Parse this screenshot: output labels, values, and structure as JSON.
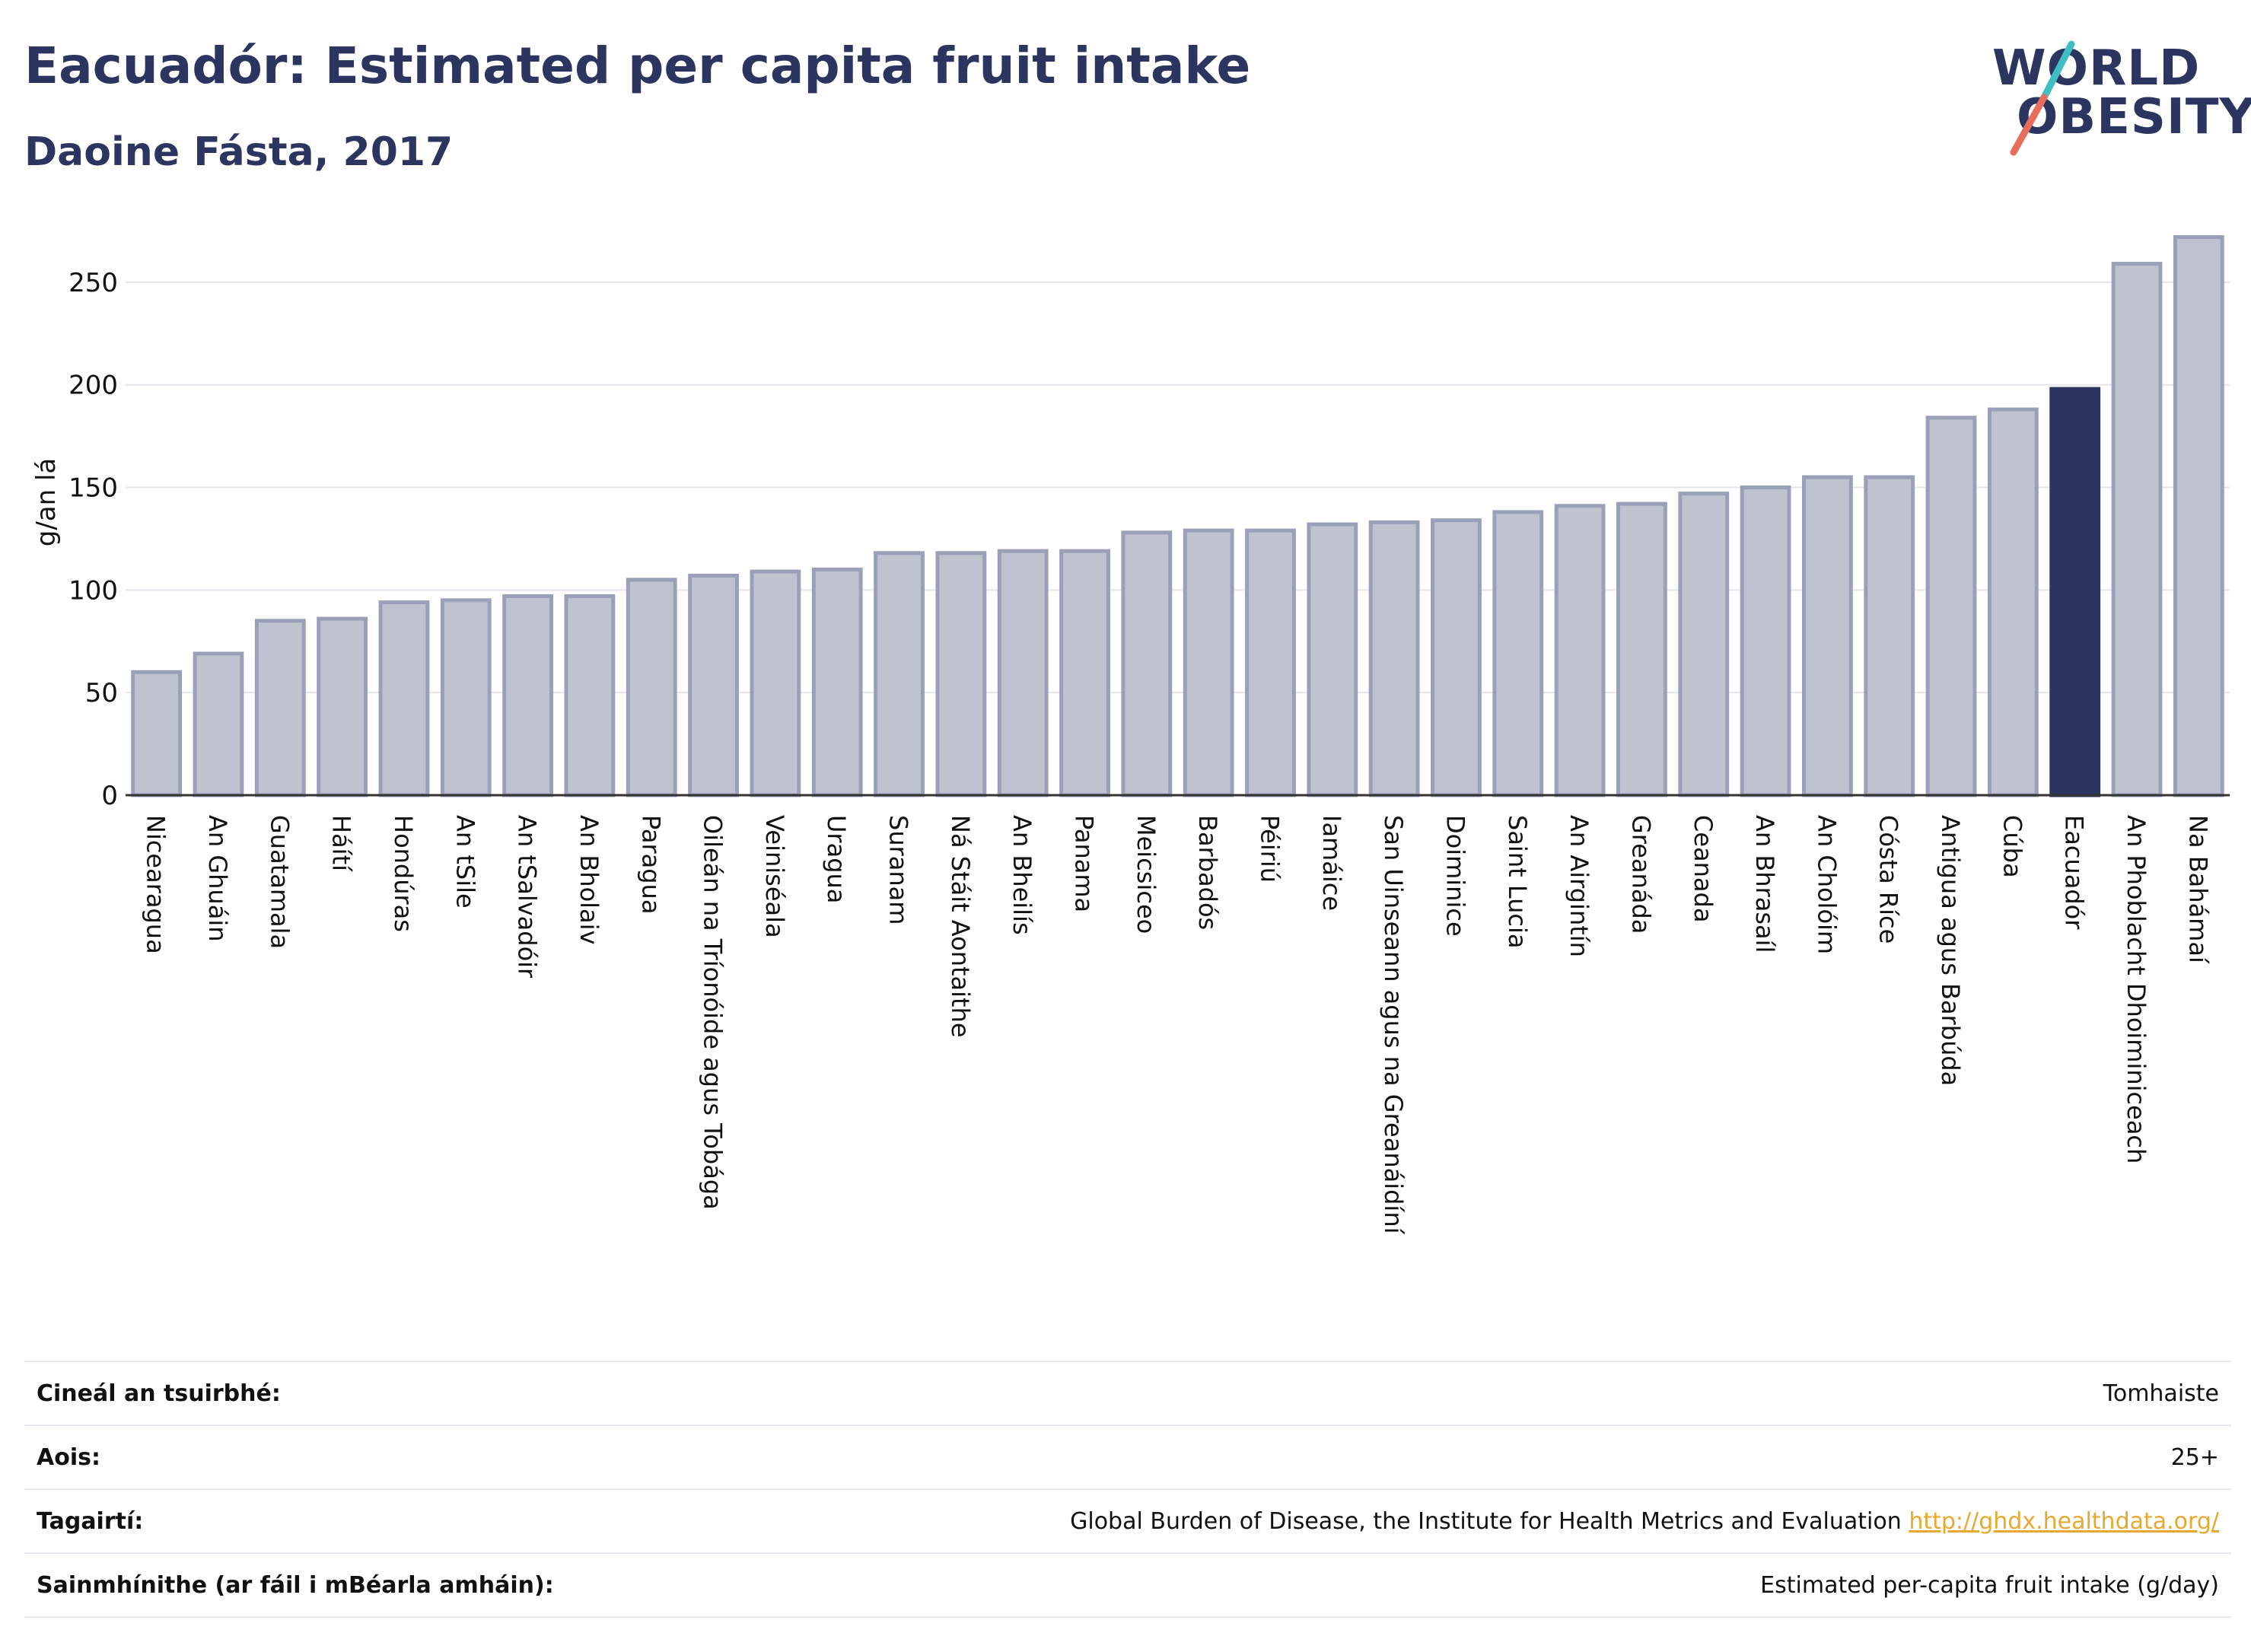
{
  "title": "Eacuadór: Estimated per capita fruit intake",
  "subtitle": "Daoine Fásta, 2017",
  "logo": {
    "line1": "WORLD",
    "line2": "OBESITY"
  },
  "colors": {
    "bar": "#bfc3d0",
    "bar_edge": "#9aa0b7",
    "highlight": "#2b355f",
    "text": "#2b355f"
  },
  "chart_data": {
    "type": "bar",
    "ylabel": "g/an lá",
    "xlabel": "",
    "ylim": [
      0,
      280
    ],
    "yticks": [
      0,
      50,
      100,
      150,
      200,
      250
    ],
    "grid": true,
    "highlight": "Eacuadór",
    "categories": [
      "Nicearagua",
      "An Ghuáin",
      "Guatamala",
      "Háítí",
      "Hondúras",
      "An tSile",
      "An tSalvadóir",
      "An Bholaiv",
      "Paragua",
      "Oileán na Tríonóide agus Tobága",
      "Veiniséala",
      "Uragua",
      "Suranam",
      "Ná Stáit Aontaithe",
      "An Bheilís",
      "Panama",
      "Meicsiceo",
      "Barbadós",
      "Péiriú",
      "Iamáice",
      "San Uinseann agus na Greanáidíní",
      "Doiminice",
      "Saint Lucia",
      "An Airgintín",
      "Greanáda",
      "Ceanada",
      "An Bhrasaíl",
      "An Cholóim",
      "Cósta Ríce",
      "Antigua agus Barbúda",
      "Cúba",
      "Eacuadór",
      "An Phoblacht Dhoiminiceach",
      "Na Bahámaí"
    ],
    "values": [
      60,
      69,
      85,
      86,
      94,
      95,
      97,
      97,
      105,
      107,
      109,
      110,
      118,
      118,
      119,
      119,
      128,
      129,
      129,
      132,
      133,
      134,
      138,
      141,
      142,
      147,
      150,
      155,
      155,
      184,
      188,
      198,
      259,
      272
    ]
  },
  "footer": {
    "rows": [
      {
        "label": "Cineál an tsuirbhé:",
        "value": "Tomhaiste"
      },
      {
        "label": "Aois:",
        "value": "25+"
      },
      {
        "label": "Tagairtí:",
        "value": "Global Burden of Disease, the Institute for Health Metrics and Evaluation",
        "link": "http://ghdx.healthdata.org/"
      },
      {
        "label": "Sainmhínithe (ar fáil i mBéarla amháin):",
        "value": "Estimated per-capita fruit intake (g/day)"
      }
    ]
  }
}
